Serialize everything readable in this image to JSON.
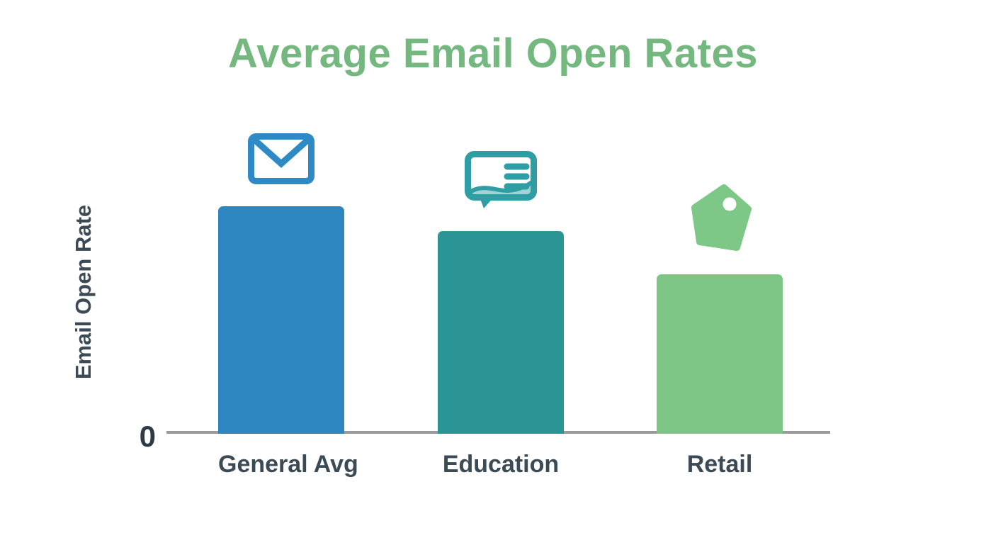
{
  "title": "Average Email Open Rates",
  "colors": {
    "title": "#74b87f",
    "axis_line": "#9a9a9a",
    "tick_text": "#2f3b44",
    "category_text": "#3b4a54",
    "y_label_text": "#3b4a54"
  },
  "y_axis": {
    "label": "Email Open Rate",
    "tick": "0"
  },
  "chart_data": {
    "type": "bar",
    "title": "Average Email Open Rates",
    "xlabel": "",
    "ylabel": "Email Open Rate",
    "categories": [
      "General Avg",
      "Education",
      "Retail"
    ],
    "values": [
      100,
      89,
      70
    ],
    "values_unit": "relative height; y-axis shows only the 0 baseline, no numeric scale labeled",
    "ylim": [
      0,
      100
    ],
    "grid": false,
    "legend": "none",
    "bar_colors": [
      "#2d86c0",
      "#2b9494",
      "#7cc585"
    ],
    "icons": [
      {
        "name": "envelope-icon",
        "color": "#2e8ac4"
      },
      {
        "name": "speech-bubble-icon",
        "color": "#2f9da4"
      },
      {
        "name": "price-tag-icon",
        "color": "#7dc787"
      }
    ]
  }
}
